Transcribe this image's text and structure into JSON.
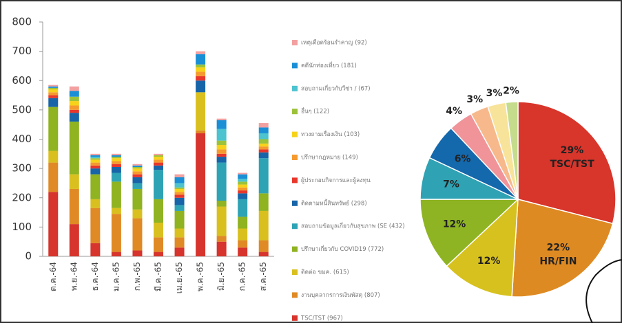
{
  "chart_data": [
    {
      "type": "bar",
      "stacked": true,
      "categories": [
        "ต.ค.-64",
        "พ.ย.-64",
        "ธ.ค.-64",
        "ม.ค.-65",
        "ก.พ.-65",
        "มี.ค.-65",
        "เม.ย.-65",
        "พ.ค.-65",
        "มิ.ย.-65",
        "ก.ค.-65",
        "ส.ค.-65"
      ],
      "ylim": [
        0,
        800
      ],
      "yticks": [
        0,
        100,
        200,
        300,
        400,
        500,
        600,
        700,
        800
      ],
      "legend": "right",
      "series": [
        {
          "name": "TSC/TST (967)",
          "color": "#d6342c",
          "values": [
            220,
            110,
            45,
            15,
            20,
            15,
            30,
            420,
            50,
            30,
            15
          ]
        },
        {
          "name": "งานบุคลากรการเงินพัสดุ (807)",
          "color": "#e08a25",
          "values": [
            100,
            120,
            120,
            130,
            110,
            50,
            35,
            10,
            20,
            25,
            40
          ]
        },
        {
          "name": "ติดต่อ ขมค. (615)",
          "color": "#d9c01e",
          "values": [
            40,
            50,
            30,
            20,
            30,
            50,
            30,
            130,
            100,
            40,
            100
          ]
        },
        {
          "name": "ปรึกษาเกี่ยวกับ COVID19 (772)",
          "color": "#8fb321",
          "values": [
            150,
            180,
            85,
            90,
            70,
            80,
            60,
            0,
            20,
            40,
            60
          ]
        },
        {
          "name": "สอบถามข้อมูลเกี่ยวกับสุขภาพ (SE (432)",
          "color": "#2ea3b5",
          "values": [
            0,
            0,
            0,
            30,
            20,
            100,
            20,
            0,
            130,
            60,
            120
          ]
        },
        {
          "name": "ติดตามหนี้สินทรัพย์ (298)",
          "color": "#1765a8",
          "values": [
            30,
            30,
            20,
            20,
            20,
            15,
            25,
            40,
            20,
            20,
            20
          ]
        },
        {
          "name": "ผู้ประกอบกิจการและผู้ลงทุน",
          "color": "#e8372b",
          "values": [
            10,
            10,
            10,
            10,
            10,
            10,
            10,
            15,
            10,
            10,
            10
          ]
        },
        {
          "name": "ปรึกษากฎหมาย (149)",
          "color": "#f59a2e",
          "values": [
            10,
            15,
            10,
            10,
            10,
            10,
            10,
            15,
            15,
            10,
            10
          ]
        },
        {
          "name": "ทวงถามเรื่องเงิน (103)",
          "color": "#f7d21a",
          "values": [
            10,
            15,
            10,
            10,
            10,
            10,
            10,
            15,
            15,
            10,
            10
          ]
        },
        {
          "name": "อื่นๆ (122)",
          "color": "#9cc23a",
          "values": [
            5,
            15,
            5,
            5,
            5,
            5,
            5,
            10,
            15,
            10,
            15
          ]
        },
        {
          "name": "สอบถามเกี่ยวกับวีซ่า / (67)",
          "color": "#4cc3cf",
          "values": [
            0,
            0,
            5,
            0,
            0,
            0,
            15,
            0,
            40,
            10,
            20
          ]
        },
        {
          "name": "คดีนักท่องเที่ยว (181)",
          "color": "#1a8fd6",
          "values": [
            5,
            20,
            5,
            5,
            5,
            0,
            20,
            35,
            30,
            15,
            20
          ]
        },
        {
          "name": "เหตุเดือดร้อนรำคาญ (92)",
          "color": "#f3a0a0",
          "values": [
            5,
            15,
            5,
            5,
            5,
            5,
            10,
            10,
            5,
            5,
            15
          ]
        }
      ]
    },
    {
      "type": "pie",
      "values": [
        29,
        22,
        12,
        12,
        7,
        6,
        4,
        3,
        3,
        2
      ],
      "value_labels": [
        "29%",
        "22%",
        "12%",
        "12%",
        "7%",
        "6%",
        "4%",
        "3%",
        "3%",
        "2%"
      ],
      "labels": [
        "TSC/TST",
        "HR/FIN",
        null,
        null,
        null,
        null,
        null,
        null,
        null,
        null
      ],
      "colors": [
        "#d8352b",
        "#de8a22",
        "#d7c11f",
        "#8eb423",
        "#2fa2b4",
        "#1468ac",
        "#f0949a",
        "#f7b98b",
        "#f8e39a",
        "#c4dc8c"
      ]
    }
  ]
}
